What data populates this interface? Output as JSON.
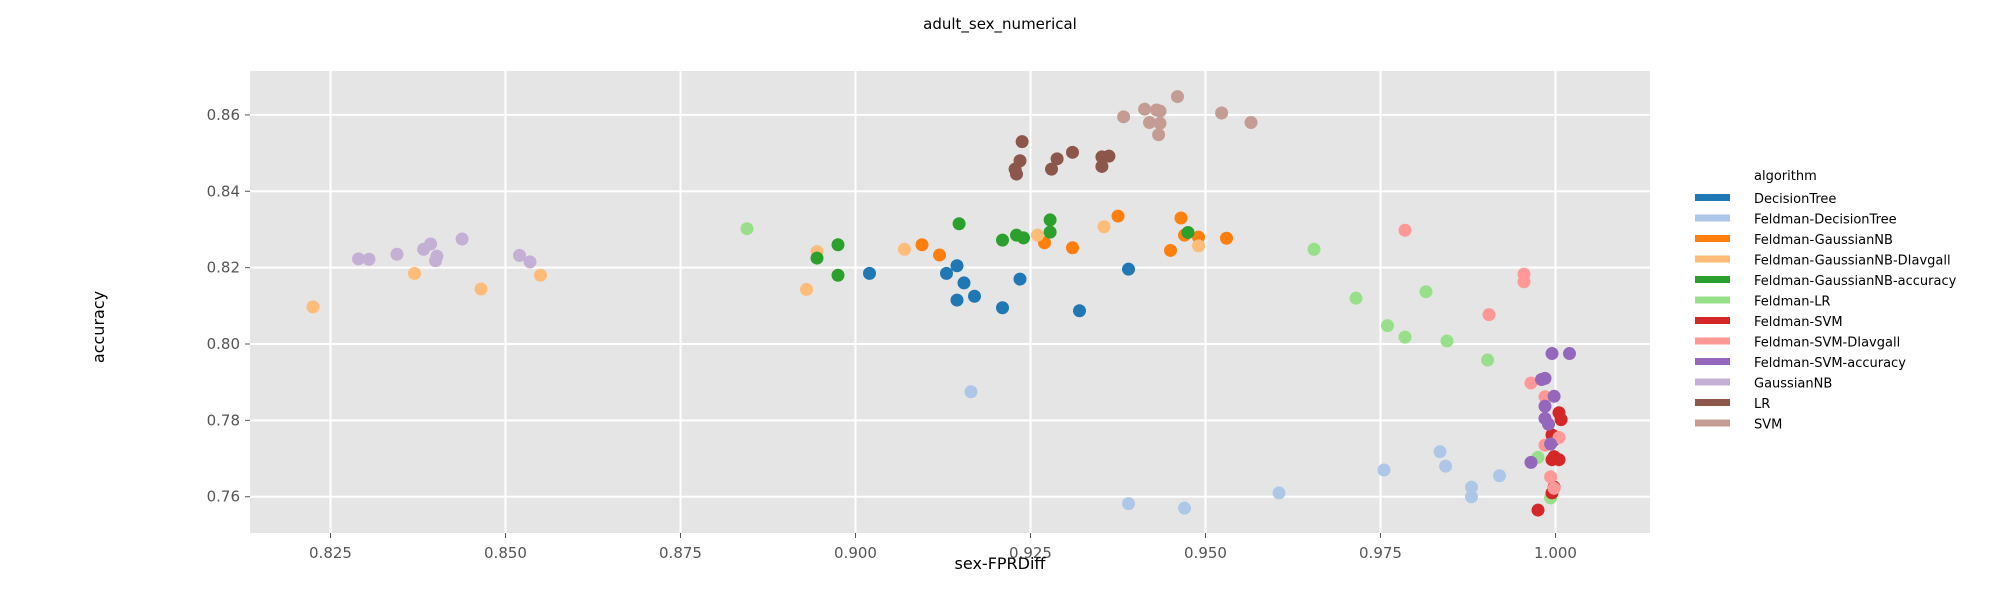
{
  "chart_data": {
    "type": "scatter",
    "title": "adult_sex_numerical",
    "xlabel": "sex-FPRDiff",
    "ylabel": "accuracy",
    "xlim": [
      0.8135,
      1.0135
    ],
    "ylim": [
      0.7505,
      0.8715
    ],
    "xticks": [
      "0.825",
      "0.850",
      "0.875",
      "0.900",
      "0.925",
      "0.950",
      "0.975",
      "1.000"
    ],
    "xtick_values": [
      0.825,
      0.85,
      0.875,
      0.9,
      0.925,
      0.95,
      0.975,
      1.0
    ],
    "yticks": [
      "0.76",
      "0.78",
      "0.80",
      "0.82",
      "0.84",
      "0.86"
    ],
    "ytick_values": [
      0.76,
      0.78,
      0.8,
      0.82,
      0.84,
      0.86
    ],
    "grid": true,
    "legend": {
      "title": "algorithm",
      "placement": "right"
    },
    "series": [
      {
        "name": "DecisionTree",
        "color": "#1f77b4",
        "points": [
          [
            0.902,
            0.8185
          ],
          [
            0.913,
            0.8185
          ],
          [
            0.9145,
            0.8205
          ],
          [
            0.9155,
            0.816
          ],
          [
            0.9145,
            0.8115
          ],
          [
            0.917,
            0.8125
          ],
          [
            0.9235,
            0.817
          ],
          [
            0.921,
            0.8095
          ],
          [
            0.932,
            0.8087
          ],
          [
            0.939,
            0.8196
          ]
        ]
      },
      {
        "name": "Feldman-DecisionTree",
        "color": "#aec7e8",
        "points": [
          [
            0.9165,
            0.7875
          ],
          [
            0.939,
            0.7582
          ],
          [
            0.947,
            0.757
          ],
          [
            0.9605,
            0.761
          ],
          [
            0.9755,
            0.767
          ],
          [
            0.9835,
            0.7718
          ],
          [
            0.9843,
            0.768
          ],
          [
            0.988,
            0.7625
          ],
          [
            0.988,
            0.76
          ],
          [
            0.992,
            0.7655
          ]
        ]
      },
      {
        "name": "Feldman-GaussianNB",
        "color": "#ff7f0e",
        "points": [
          [
            0.9095,
            0.826
          ],
          [
            0.912,
            0.8233
          ],
          [
            0.927,
            0.8265
          ],
          [
            0.931,
            0.8252
          ],
          [
            0.9375,
            0.8335
          ],
          [
            0.945,
            0.8245
          ],
          [
            0.9465,
            0.833
          ],
          [
            0.947,
            0.8285
          ],
          [
            0.949,
            0.828
          ],
          [
            0.953,
            0.8277
          ]
        ]
      },
      {
        "name": "Feldman-GaussianNB-DIavgall",
        "color": "#ffbb78",
        "points": [
          [
            0.8225,
            0.8097
          ],
          [
            0.837,
            0.8185
          ],
          [
            0.8465,
            0.8144
          ],
          [
            0.855,
            0.818
          ],
          [
            0.893,
            0.8143
          ],
          [
            0.8945,
            0.8242
          ],
          [
            0.907,
            0.8248
          ],
          [
            0.926,
            0.8285
          ],
          [
            0.9355,
            0.8307
          ],
          [
            0.949,
            0.8257
          ]
        ]
      },
      {
        "name": "Feldman-GaussianNB-accuracy",
        "color": "#2ca02c",
        "points": [
          [
            0.8945,
            0.8225
          ],
          [
            0.8975,
            0.826
          ],
          [
            0.8975,
            0.818
          ],
          [
            0.9148,
            0.8315
          ],
          [
            0.921,
            0.8272
          ],
          [
            0.923,
            0.8285
          ],
          [
            0.924,
            0.8278
          ],
          [
            0.9278,
            0.8293
          ],
          [
            0.9278,
            0.8325
          ],
          [
            0.9475,
            0.8292
          ]
        ]
      },
      {
        "name": "Feldman-LR",
        "color": "#98df8a",
        "points": [
          [
            0.8845,
            0.8302
          ],
          [
            0.9655,
            0.8248
          ],
          [
            0.9715,
            0.812
          ],
          [
            0.976,
            0.8048
          ],
          [
            0.9785,
            0.8018
          ],
          [
            0.9815,
            0.8137
          ],
          [
            0.9845,
            0.8008
          ],
          [
            0.9903,
            0.7958
          ],
          [
            0.9975,
            0.7703
          ],
          [
            0.9993,
            0.7597
          ]
        ]
      },
      {
        "name": "Feldman-SVM",
        "color": "#d62728",
        "points": [
          [
            0.9975,
            0.7565
          ],
          [
            0.9995,
            0.761
          ],
          [
            0.9998,
            0.7625
          ],
          [
            0.9995,
            0.7697
          ],
          [
            1.0005,
            0.7697
          ],
          [
            0.9997,
            0.7748
          ],
          [
            1.0008,
            0.7802
          ],
          [
            1.0005,
            0.782
          ],
          [
            0.9995,
            0.7762
          ],
          [
            0.9998,
            0.7705
          ]
        ]
      },
      {
        "name": "Feldman-SVM-DIavgall",
        "color": "#ff9896",
        "points": [
          [
            0.9785,
            0.8298
          ],
          [
            0.9905,
            0.8077
          ],
          [
            0.9955,
            0.8183
          ],
          [
            0.9955,
            0.8163
          ],
          [
            0.9965,
            0.7898
          ],
          [
            0.9985,
            0.7735
          ],
          [
            0.9985,
            0.7862
          ],
          [
            0.9993,
            0.7652
          ],
          [
            0.9998,
            0.7622
          ],
          [
            1.0005,
            0.7755
          ]
        ]
      },
      {
        "name": "Feldman-SVM-accuracy",
        "color": "#9467bd",
        "points": [
          [
            0.9965,
            0.769
          ],
          [
            0.998,
            0.7907
          ],
          [
            0.9985,
            0.791
          ],
          [
            0.9995,
            0.7975
          ],
          [
            1.002,
            0.7975
          ],
          [
            0.9985,
            0.7837
          ],
          [
            0.9998,
            0.7863
          ],
          [
            0.9985,
            0.7805
          ],
          [
            0.999,
            0.779
          ],
          [
            0.9993,
            0.7738
          ]
        ]
      },
      {
        "name": "GaussianNB",
        "color": "#c5b0d5",
        "points": [
          [
            0.829,
            0.8223
          ],
          [
            0.8305,
            0.8222
          ],
          [
            0.8345,
            0.8235
          ],
          [
            0.8383,
            0.8248
          ],
          [
            0.8393,
            0.8262
          ],
          [
            0.84,
            0.8218
          ],
          [
            0.8402,
            0.823
          ],
          [
            0.8438,
            0.8275
          ],
          [
            0.852,
            0.8232
          ],
          [
            0.8535,
            0.8215
          ]
        ]
      },
      {
        "name": "LR",
        "color": "#8c564b",
        "points": [
          [
            0.9228,
            0.8458
          ],
          [
            0.923,
            0.8445
          ],
          [
            0.9235,
            0.848
          ],
          [
            0.9238,
            0.853
          ],
          [
            0.928,
            0.8458
          ],
          [
            0.9288,
            0.8485
          ],
          [
            0.931,
            0.8502
          ],
          [
            0.9352,
            0.8465
          ],
          [
            0.9352,
            0.849
          ],
          [
            0.9362,
            0.8492
          ]
        ]
      },
      {
        "name": "SVM",
        "color": "#c49c94",
        "points": [
          [
            0.9383,
            0.8595
          ],
          [
            0.9413,
            0.8615
          ],
          [
            0.942,
            0.858
          ],
          [
            0.943,
            0.8613
          ],
          [
            0.9433,
            0.8548
          ],
          [
            0.9435,
            0.8578
          ],
          [
            0.9435,
            0.861
          ],
          [
            0.946,
            0.8648
          ],
          [
            0.9523,
            0.8605
          ],
          [
            0.9565,
            0.858
          ]
        ]
      }
    ]
  }
}
